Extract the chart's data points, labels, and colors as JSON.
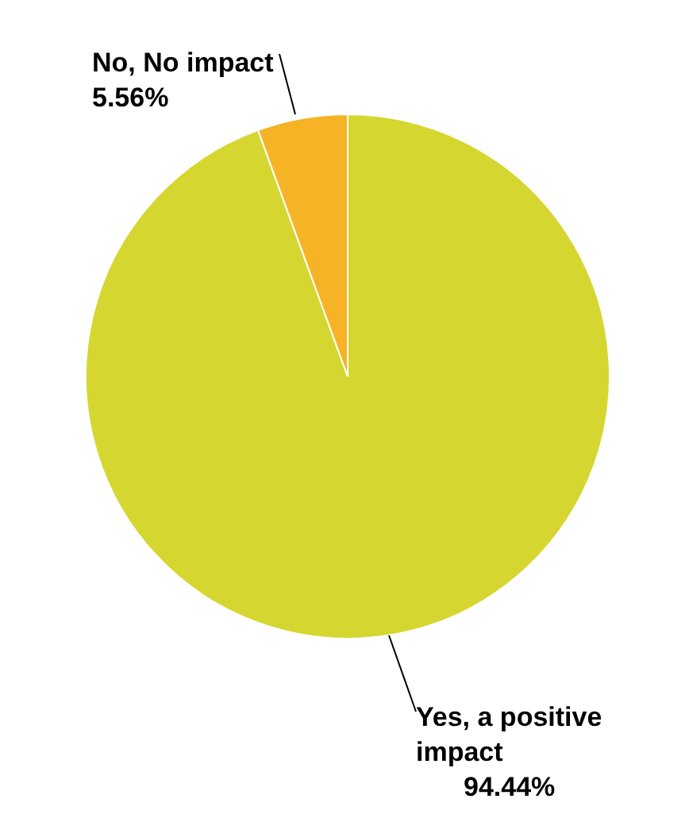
{
  "chart_data": {
    "type": "pie",
    "categories": [
      "Yes, a positive impact",
      "No, No impact"
    ],
    "values": [
      94.44,
      5.56
    ],
    "colors": [
      "#d6d630",
      "#f5b325"
    ],
    "value_labels": [
      "94.44%",
      "5.56%"
    ]
  }
}
